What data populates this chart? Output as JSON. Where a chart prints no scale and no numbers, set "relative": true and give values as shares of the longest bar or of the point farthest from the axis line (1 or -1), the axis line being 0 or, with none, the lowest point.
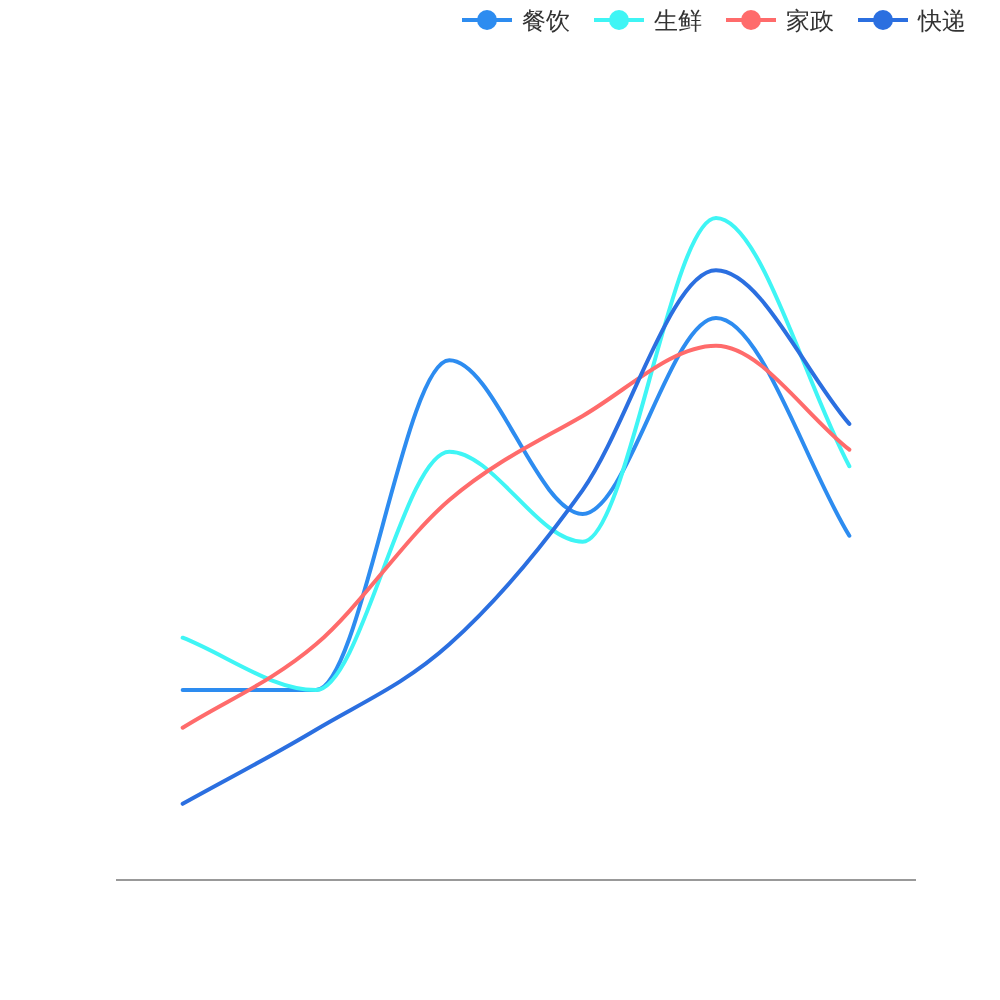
{
  "chart_data": {
    "type": "line",
    "relative": true,
    "categories": [
      null,
      null,
      null,
      null,
      null,
      null
    ],
    "series": [
      {
        "name": "餐饮",
        "color": "#2d8cf0",
        "values": [
          0.287,
          0.287,
          0.785,
          0.553,
          0.849,
          0.52
        ]
      },
      {
        "name": "生鲜",
        "color": "#3ff5f5",
        "values": [
          0.366,
          0.287,
          0.647,
          0.511,
          1,
          0.625
        ]
      },
      {
        "name": "家政",
        "color": "#ff6b6b",
        "values": [
          0.23,
          0.356,
          0.574,
          0.701,
          0.807,
          0.65
        ]
      },
      {
        "name": "快递",
        "color": "#2b6fe0",
        "values": [
          0.115,
          0.227,
          0.356,
          0.589,
          0.921,
          0.689
        ]
      }
    ],
    "legend": "top right",
    "marker": "none",
    "grid": false
  }
}
